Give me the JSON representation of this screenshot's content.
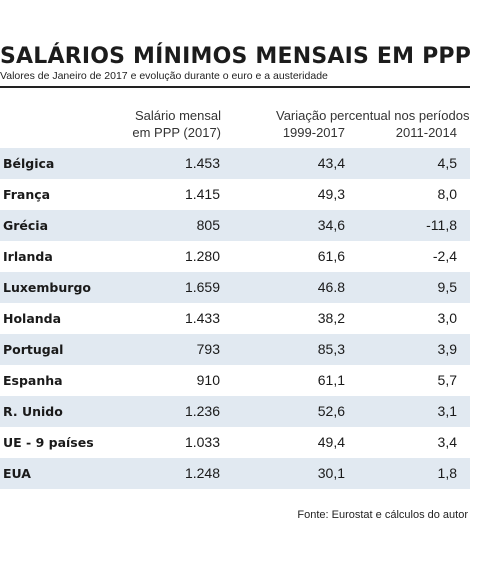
{
  "chart_data": {
    "type": "table",
    "title": "SALÁRIOS MÍNIMOS MENSAIS EM PPP",
    "subtitle": "Valores de Janeiro de 2017 e evolução durante o euro e a austeridade",
    "headers": {
      "col1_line1": "Salário mensal",
      "col1_line2": "em PPP (2017)",
      "group_label": "Variação percentual nos períodos",
      "col2": "1999-2017",
      "col3": "2011-2014"
    },
    "rows": [
      {
        "country": "Bélgica",
        "salary": "1.453",
        "var_1999_2017": "43,4",
        "var_2011_2014": "4,5"
      },
      {
        "country": "França",
        "salary": "1.415",
        "var_1999_2017": "49,3",
        "var_2011_2014": "8,0"
      },
      {
        "country": "Grécia",
        "salary": "805",
        "var_1999_2017": "34,6",
        "var_2011_2014": "-11,8"
      },
      {
        "country": "Irlanda",
        "salary": "1.280",
        "var_1999_2017": "61,6",
        "var_2011_2014": "-2,4"
      },
      {
        "country": "Luxemburgo",
        "salary": "1.659",
        "var_1999_2017": "46.8",
        "var_2011_2014": "9,5"
      },
      {
        "country": "Holanda",
        "salary": "1.433",
        "var_1999_2017": "38,2",
        "var_2011_2014": "3,0"
      },
      {
        "country": "Portugal",
        "salary": "793",
        "var_1999_2017": "85,3",
        "var_2011_2014": "3,9"
      },
      {
        "country": "Espanha",
        "salary": "910",
        "var_1999_2017": "61,1",
        "var_2011_2014": "5,7"
      },
      {
        "country": "R. Unido",
        "salary": "1.236",
        "var_1999_2017": "52,6",
        "var_2011_2014": "3,1"
      },
      {
        "country": "UE - 9 países",
        "salary": "1.033",
        "var_1999_2017": "49,4",
        "var_2011_2014": "3,4"
      },
      {
        "country": "EUA",
        "salary": "1.248",
        "var_1999_2017": "30,1",
        "var_2011_2014": "1,8"
      }
    ],
    "source": "Fonte: Eurostat e cálculos do autor",
    "colors": {
      "row_shade": "#e1e9f1",
      "text": "#1a1a1a"
    }
  }
}
